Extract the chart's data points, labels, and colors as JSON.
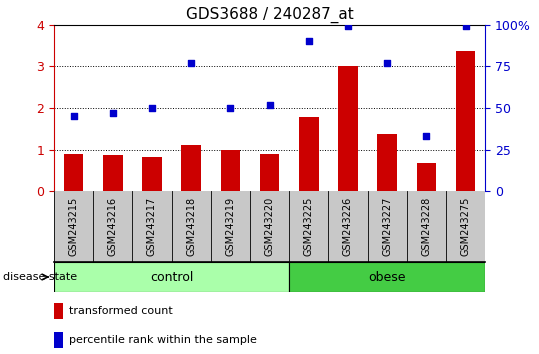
{
  "title": "GDS3688 / 240287_at",
  "samples": [
    "GSM243215",
    "GSM243216",
    "GSM243217",
    "GSM243218",
    "GSM243219",
    "GSM243220",
    "GSM243225",
    "GSM243226",
    "GSM243227",
    "GSM243228",
    "GSM243275"
  ],
  "transformed_count": [
    0.9,
    0.88,
    0.83,
    1.1,
    1.0,
    0.9,
    1.78,
    3.0,
    1.38,
    0.68,
    3.38
  ],
  "percentile_rank": [
    45,
    47,
    50,
    77,
    50,
    52,
    90,
    99,
    77,
    33,
    99
  ],
  "ylim_left": [
    0,
    4
  ],
  "ylim_right": [
    0,
    100
  ],
  "yticks_left": [
    0,
    1,
    2,
    3,
    4
  ],
  "yticks_right": [
    0,
    25,
    50,
    75,
    100
  ],
  "bar_color": "#cc0000",
  "dot_color": "#0000cc",
  "tick_area_color": "#c8c8c8",
  "control_color": "#aaffaa",
  "obese_color": "#44cc44",
  "n_control": 6,
  "n_obese": 5,
  "legend_bar_label": "transformed count",
  "legend_dot_label": "percentile rank within the sample",
  "disease_state_label": "disease state",
  "control_label": "control",
  "obese_label": "obese",
  "title_fontsize": 11,
  "axis_fontsize": 9,
  "tick_fontsize": 7
}
